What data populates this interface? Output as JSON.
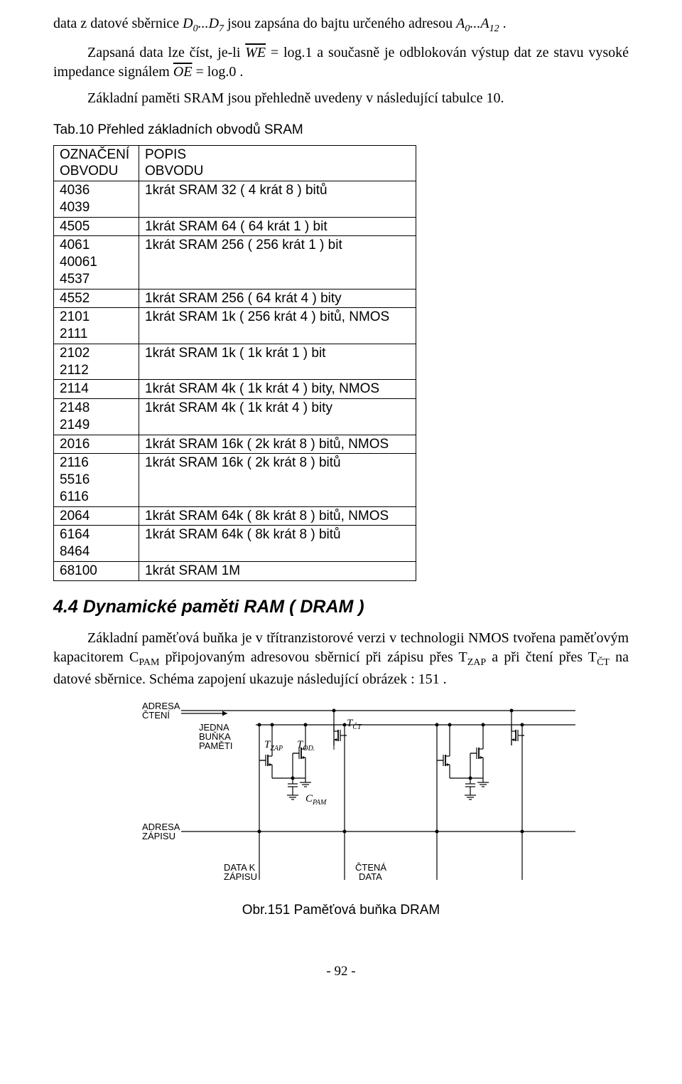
{
  "p1_a": "data z datové sběrnice ",
  "p1_b": " jsou zapsána do bajtu určeného adresou ",
  "eq_D0": "D",
  "eq_D0s": "0",
  "eq_dots": "...",
  "eq_D7": "D",
  "eq_D7s": "7",
  "eq_A0": "A",
  "eq_A0s": "0",
  "eq_A12": "A",
  "eq_A12s": "12",
  "period": " .",
  "p2_a": "Zapsaná data lze číst, je-li ",
  "eq_WE": "WE",
  "eq_eqlog1": " = log.1",
  "p2_b": " a současně je odblokován výstup dat ze stavu vysoké impedance signálem ",
  "eq_OE": "OE",
  "eq_eqlog0": " = log.0",
  "p3": "Základní paměti SRAM jsou přehledně uvedeny v následující tabulce 10.",
  "table_caption": "Tab.10 Přehled základních obvodů SRAM",
  "th_code": "OZNAČENÍ\nOBVODU",
  "th_desc": "POPIS\nOBVODU",
  "rows": [
    {
      "codes": "4036\n4039",
      "desc": "1krát SRAM 32 ( 4 krát 8 ) bitů"
    },
    {
      "codes": "4505",
      "desc": "1krát SRAM 64 ( 64 krát 1 ) bit"
    },
    {
      "codes": "4061\n40061\n4537",
      "desc": "1krát SRAM 256 ( 256 krát 1 ) bit"
    },
    {
      "codes": "4552",
      "desc": "1krát SRAM 256 ( 64 krát 4 ) bity"
    },
    {
      "codes": "2101\n2111",
      "desc": "1krát SRAM 1k ( 256 krát 4 ) bitů, NMOS"
    },
    {
      "codes": "2102\n2112",
      "desc": "1krát SRAM 1k ( 1k krát 1 ) bit"
    },
    {
      "codes": "2114",
      "desc": "1krát SRAM 4k ( 1k krát 4 ) bity, NMOS"
    },
    {
      "codes": "2148\n2149",
      "desc": "1krát SRAM 4k ( 1k krát 4 ) bity"
    },
    {
      "codes": "2016",
      "desc": "1krát SRAM 16k ( 2k krát 8 ) bitů, NMOS"
    },
    {
      "codes": "2116\n5516\n6116",
      "desc": "1krát SRAM 16k ( 2k krát 8 ) bitů"
    },
    {
      "codes": "2064",
      "desc": "1krát SRAM 64k ( 8k krát 8 ) bitů, NMOS"
    },
    {
      "codes": "6164\n8464",
      "desc": "1krát SRAM 64k ( 8k krát 8 ) bitů"
    },
    {
      "codes": "68100",
      "desc": "1krát SRAM 1M"
    }
  ],
  "section_title": "4.4 Dynamické paměti RAM ( DRAM )",
  "p4": "Základní paměťová buňka je v třítranzistorové verzi v technologii NMOS tvořena paměťovým kapacitorem C",
  "p4_sub1": "PAM",
  "p4_b": " připojovaným adresovou sběrnicí při zápisu přes T",
  "p4_sub2": "ZAP",
  "p4_c": " a při čtení přes T",
  "p4_sub3": "ČT",
  "p4_d": " na datové sběrnice. Schéma zapojení ukazuje následující obrázek : 151 .",
  "fig": {
    "labels": {
      "adresa_cteni": "ADRESA\nČTENÍ",
      "jedna_bunka": "JEDNA\nBUŇKA\nPAMĚTI",
      "adresa_zapisu": "ADRESA\nZÁPISU",
      "data_k_zapisu": "DATA K\nZÁPISU",
      "ctena_data": "ČTENÁ\nDATA",
      "T_ZAP": "T",
      "T_ZAP_s": "ZAP",
      "T_OD": "T",
      "T_OD_s": "OD.",
      "T_CT": "T",
      "T_CT_s": "ČT",
      "C_PAM": "C",
      "C_PAM_s": "PAM"
    },
    "colors": {
      "stroke": "#000000",
      "bg": "#ffffff"
    }
  },
  "fig_caption": "Obr.151 Paměťová buňka DRAM",
  "page_no": "- 92 -"
}
